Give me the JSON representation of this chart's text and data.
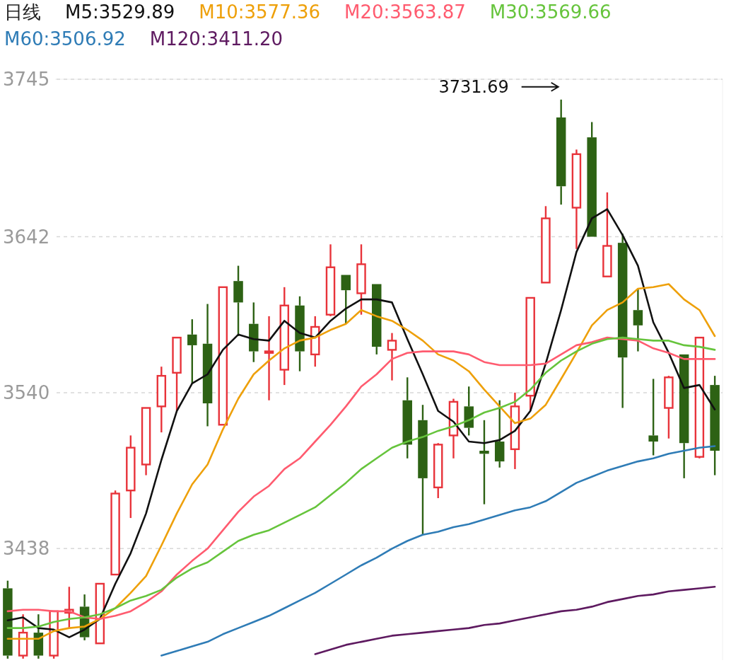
{
  "chart_data": {
    "type": "candlestick",
    "title": "日线",
    "categories": [
      null,
      null,
      null,
      null,
      null,
      null,
      null,
      null,
      null,
      null,
      null,
      null,
      null,
      null,
      null,
      null,
      null,
      null,
      null,
      null,
      null,
      null,
      null,
      null,
      null,
      null,
      null,
      null,
      null,
      null,
      null,
      null,
      null,
      null,
      null,
      null,
      null,
      null,
      null,
      null,
      null,
      null,
      null,
      null,
      null,
      null,
      null
    ],
    "ohlc": [
      [
        3412,
        3417,
        3366,
        3368
      ],
      [
        3368,
        3395,
        3366,
        3383
      ],
      [
        3383,
        3395,
        3366,
        3368
      ],
      [
        3368,
        3397,
        3366,
        3397
      ],
      [
        3396,
        3413,
        3386,
        3398
      ],
      [
        3400,
        3408,
        3378,
        3380
      ],
      [
        3376,
        3415,
        3376,
        3415
      ],
      [
        3421,
        3476,
        3421,
        3474
      ],
      [
        3476,
        3512,
        3458,
        3504
      ],
      [
        3493,
        3530,
        3486,
        3530
      ],
      [
        3531,
        3557,
        3514,
        3551
      ],
      [
        3553,
        3576,
        3528,
        3576
      ],
      [
        3578,
        3588,
        3546,
        3571
      ],
      [
        3572,
        3598,
        3518,
        3533
      ],
      [
        3519,
        3609,
        3519,
        3609
      ],
      [
        3613,
        3623,
        3577,
        3599
      ],
      [
        3585,
        3599,
        3560,
        3567
      ],
      [
        3566,
        3590,
        3535,
        3567
      ],
      [
        3555,
        3609,
        3545,
        3597
      ],
      [
        3597,
        3603,
        3554,
        3567
      ],
      [
        3565,
        3590,
        3557,
        3583
      ],
      [
        3591,
        3637,
        3590,
        3622
      ],
      [
        3617,
        3617,
        3585,
        3607
      ],
      [
        3605,
        3637,
        3591,
        3624
      ],
      [
        3611,
        3611,
        3565,
        3570
      ],
      [
        3568,
        3579,
        3548,
        3574
      ],
      [
        3535,
        3550,
        3497,
        3506
      ],
      [
        3522,
        3532,
        3447,
        3484
      ],
      [
        3478,
        3507,
        3471,
        3506
      ],
      [
        3512,
        3536,
        3497,
        3534
      ],
      [
        3531,
        3544,
        3512,
        3517
      ],
      [
        3502,
        3522,
        3467,
        3500
      ],
      [
        3508,
        3535,
        3491,
        3495
      ],
      [
        3503,
        3540,
        3490,
        3531
      ],
      [
        3538,
        3602,
        3528,
        3602
      ],
      [
        3612,
        3662,
        3612,
        3654
      ],
      [
        3720,
        3731.69,
        3663,
        3675
      ],
      [
        3661,
        3699,
        3634,
        3696
      ],
      [
        3707,
        3717,
        3642,
        3642
      ],
      [
        3616,
        3671,
        3616,
        3636
      ],
      [
        3638,
        3644,
        3530,
        3563
      ],
      [
        3594,
        3608,
        3567,
        3584
      ],
      [
        3512,
        3549,
        3499,
        3508
      ],
      [
        3530,
        3551,
        3510,
        3550
      ],
      [
        3565,
        3565,
        3484,
        3507
      ],
      [
        3498,
        3576,
        3497,
        3576
      ],
      [
        3545,
        3551,
        3486,
        3502
      ]
    ],
    "colors": [
      "#2d6214",
      "#e8333a",
      "#2d6214",
      "#e8333a",
      "#e8333a",
      "#2d6214",
      "#e8333a",
      "#e8333a",
      "#e8333a",
      "#e8333a",
      "#e8333a",
      "#e8333a",
      "#2d6214",
      "#2d6214",
      "#e8333a",
      "#2d6214",
      "#2d6214",
      "#e8333a",
      "#e8333a",
      "#2d6214",
      "#e8333a",
      "#e8333a",
      "#2d6214",
      "#e8333a",
      "#2d6214",
      "#e8333a",
      "#2d6214",
      "#2d6214",
      "#e8333a",
      "#e8333a",
      "#2d6214",
      "#2d6214",
      "#2d6214",
      "#e8333a",
      "#e8333a",
      "#e8333a",
      "#2d6214",
      "#e8333a",
      "#2d6214",
      "#e8333a",
      "#2d6214",
      "#2d6214",
      "#2d6214",
      "#e8333a",
      "#2d6214",
      "#e8333a",
      "#2d6214"
    ],
    "series": [
      {
        "name": "M5:3529.89",
        "type": "line",
        "color": "#111111",
        "values": [
          3391,
          3393,
          3386,
          3385,
          3380,
          3385,
          3392,
          3415,
          3435,
          3461,
          3496,
          3528,
          3546,
          3552,
          3568,
          3578,
          3575,
          3574,
          3587,
          3579,
          3576,
          3587,
          3595,
          3601,
          3601,
          3599,
          3575,
          3552,
          3528,
          3521,
          3508,
          3507,
          3509,
          3515,
          3528,
          3559,
          3594,
          3632,
          3654,
          3660,
          3643,
          3623,
          3586,
          3566,
          3543,
          3545,
          3529
        ]
      },
      {
        "name": "M10:3577.36",
        "type": "line",
        "color": "#eea00a",
        "values": [
          3379,
          3379,
          3379,
          3384,
          3386,
          3387,
          3392,
          3399,
          3409,
          3420,
          3440,
          3461,
          3480,
          3493,
          3516,
          3536,
          3552,
          3561,
          3569,
          3574,
          3576,
          3581,
          3585,
          3594,
          3590,
          3587,
          3581,
          3574,
          3565,
          3561,
          3554,
          3542,
          3531,
          3520,
          3523,
          3532,
          3549,
          3566,
          3584,
          3594,
          3599,
          3608,
          3609,
          3611,
          3601,
          3594,
          3577
        ]
      },
      {
        "name": "M20:3563.87",
        "type": "line",
        "color": "#ff5b6f",
        "values": [
          3397,
          3398,
          3398,
          3397,
          3397,
          3393,
          3392,
          3394,
          3397,
          3403,
          3410,
          3421,
          3430,
          3438,
          3450,
          3462,
          3472,
          3479,
          3490,
          3497,
          3508,
          3519,
          3531,
          3544,
          3552,
          3562,
          3566,
          3567,
          3567,
          3567,
          3565,
          3560,
          3558,
          3558,
          3558,
          3559,
          3565,
          3571,
          3573,
          3576,
          3575,
          3574,
          3569,
          3566,
          3562,
          3562,
          3562
        ]
      },
      {
        "name": "M30:3569.66",
        "type": "line",
        "color": "#66c43c",
        "values": [
          3386,
          3386,
          3387,
          3390,
          3392,
          3393,
          3395,
          3399,
          3404,
          3407,
          3411,
          3419,
          3425,
          3429,
          3436,
          3443,
          3447,
          3450,
          3455,
          3460,
          3465,
          3473,
          3481,
          3490,
          3497,
          3504,
          3508,
          3511,
          3515,
          3518,
          3522,
          3527,
          3530,
          3534,
          3542,
          3553,
          3561,
          3567,
          3572,
          3575,
          3576,
          3575,
          3574,
          3574,
          3571,
          3570,
          3568
        ]
      },
      {
        "name": "M60:3506.92",
        "type": "line",
        "color": "#2f7cb6",
        "values": [
          null,
          null,
          null,
          null,
          null,
          null,
          null,
          null,
          null,
          null,
          3368,
          3371,
          3374,
          3377,
          3382,
          3386,
          3390,
          3394,
          3399,
          3404,
          3409,
          3415,
          3421,
          3427,
          3432,
          3438,
          3443,
          3447,
          3449,
          3452,
          3454,
          3457,
          3460,
          3463,
          3465,
          3469,
          3475,
          3481,
          3485,
          3489,
          3492,
          3495,
          3497,
          3500,
          3502,
          3504,
          3505
        ]
      },
      {
        "name": "M120:3411.20",
        "type": "line",
        "color": "#5e1a60",
        "values": [
          null,
          null,
          null,
          null,
          null,
          null,
          null,
          null,
          null,
          null,
          null,
          null,
          null,
          null,
          null,
          null,
          null,
          null,
          null,
          null,
          3369,
          3372,
          3375,
          3377,
          3379,
          3381,
          3382,
          3383,
          3384,
          3385,
          3386,
          3388,
          3389,
          3391,
          3393,
          3395,
          3397,
          3398,
          3400,
          3403,
          3405,
          3407,
          3408,
          3410,
          3411,
          3412,
          3413
        ]
      }
    ],
    "ylim": [
      3365,
      3745
    ],
    "yticks": [
      3745,
      3642,
      3540,
      3438
    ],
    "grid": "y",
    "legend": "top",
    "annotations": [
      "3731.69"
    ]
  }
}
